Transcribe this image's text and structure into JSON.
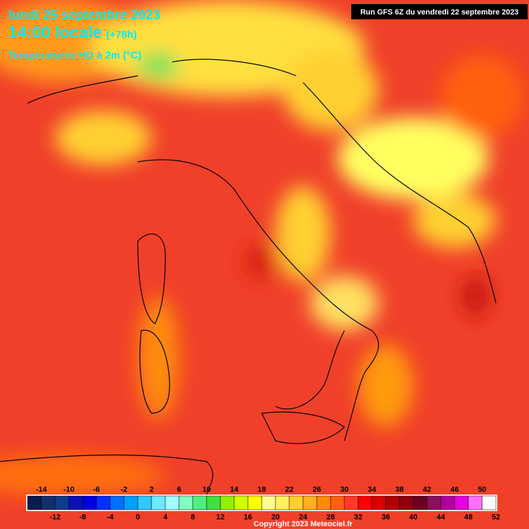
{
  "header": {
    "date": "lundi 25 septembre 2023",
    "time": "14:00 locale",
    "lead": "(+78h)",
    "field": "Températures HD à 2m (°C)"
  },
  "run": "Run GFS 6Z du vendredi 22 septembre 2023",
  "legend": {
    "ticks": [
      -14,
      -12,
      -10,
      -8,
      -6,
      -4,
      -2,
      0,
      2,
      4,
      6,
      8,
      10,
      12,
      14,
      16,
      18,
      20,
      22,
      24,
      26,
      28,
      30,
      32,
      34,
      36,
      38,
      40,
      42,
      44,
      46,
      48,
      50,
      52
    ],
    "colors": [
      "#0b1a4f",
      "#13306e",
      "#103a8c",
      "#0a10b4",
      "#0000e0",
      "#0030ff",
      "#0070ff",
      "#00a0ff",
      "#30c8ff",
      "#70e8ff",
      "#a0ffff",
      "#80ffc0",
      "#50f080",
      "#40e040",
      "#90f000",
      "#d0ff00",
      "#ffff00",
      "#ffff90",
      "#fff060",
      "#ffd030",
      "#ffb020",
      "#ff8c00",
      "#ff6010",
      "#ff3a28",
      "#ff0000",
      "#d80000",
      "#b00000",
      "#8c0010",
      "#6a0020",
      "#8a1060",
      "#b000a0",
      "#e000e0",
      "#ff70ff",
      "#ffffff"
    ]
  },
  "copyright": "Copyright 2023 Meteociel.fr"
}
